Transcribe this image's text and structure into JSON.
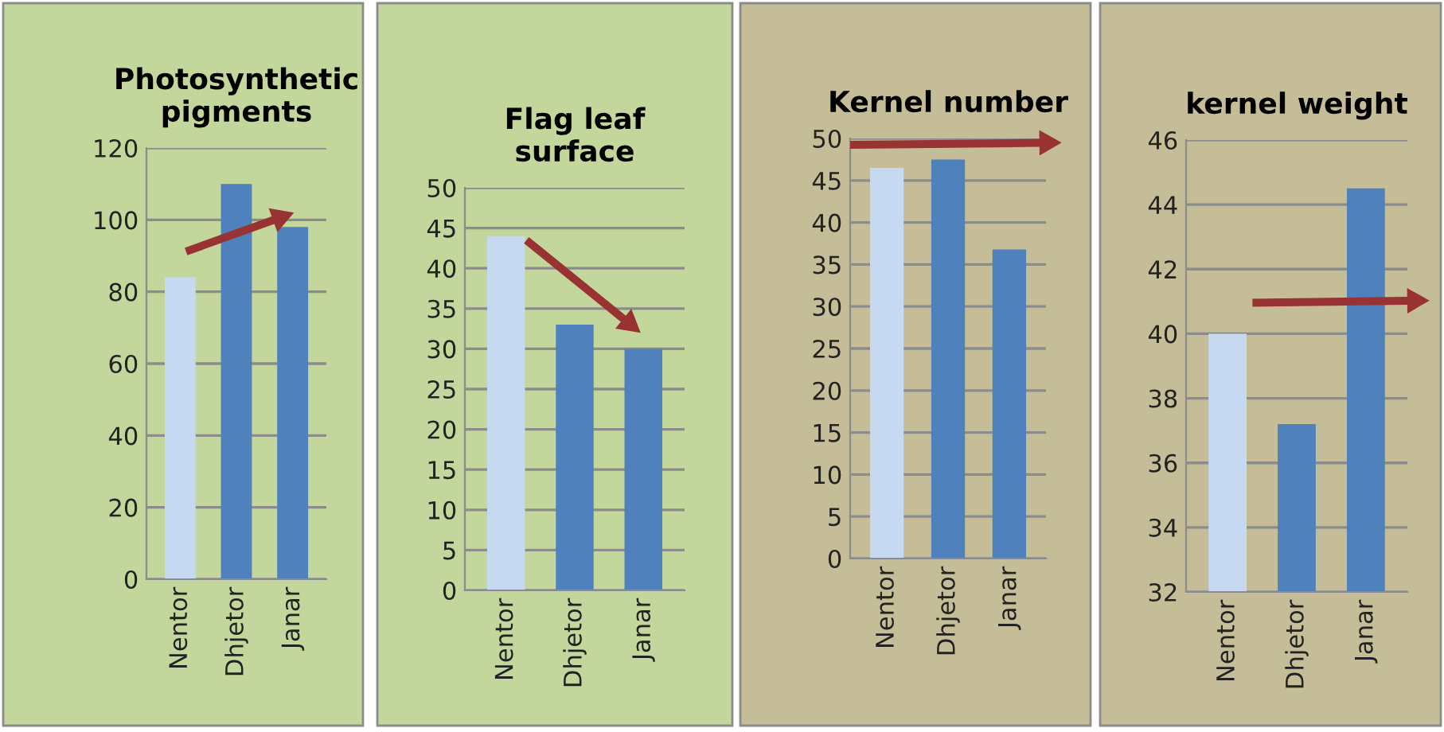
{
  "chart_data": [
    {
      "type": "bar",
      "title": "Photosynthetic\npigments",
      "categories": [
        "Nentor",
        "Dhjetor",
        "Janar"
      ],
      "values": [
        84,
        110,
        98
      ],
      "colors": [
        "#c6d9f1",
        "#4f81bd",
        "#4f81bd"
      ],
      "ylim": [
        0,
        120
      ],
      "yticks": [
        0,
        20,
        40,
        60,
        80,
        100,
        120
      ],
      "grid": "y"
    },
    {
      "type": "bar",
      "title": "Flag leaf\nsurface",
      "categories": [
        "Nentor",
        "Dhjetor",
        "Janar"
      ],
      "values": [
        44,
        33,
        30
      ],
      "colors": [
        "#c6d9f1",
        "#4f81bd",
        "#4f81bd"
      ],
      "ylim": [
        0,
        50
      ],
      "yticks": [
        0,
        5,
        10,
        15,
        20,
        25,
        30,
        35,
        40,
        45,
        50
      ],
      "grid": "y"
    },
    {
      "type": "bar",
      "title": "Kernel number",
      "categories": [
        "Nentor",
        "Dhjetor",
        "Janar"
      ],
      "values": [
        46.5,
        47.5,
        36.8
      ],
      "colors": [
        "#c6d9f1",
        "#4f81bd",
        "#4f81bd"
      ],
      "ylim": [
        0,
        50
      ],
      "yticks": [
        0,
        5,
        10,
        15,
        20,
        25,
        30,
        35,
        40,
        45,
        50
      ],
      "grid": "y"
    },
    {
      "type": "bar",
      "title": "kernel weight",
      "categories": [
        "Nentor",
        "Dhjetor",
        "Janar"
      ],
      "values": [
        40,
        37.2,
        44.5
      ],
      "colors": [
        "#c6d9f1",
        "#4f81bd",
        "#4f81bd"
      ],
      "ylim": [
        32,
        46
      ],
      "yticks": [
        32,
        34,
        36,
        38,
        40,
        42,
        44,
        46
      ],
      "grid": "y"
    }
  ]
}
